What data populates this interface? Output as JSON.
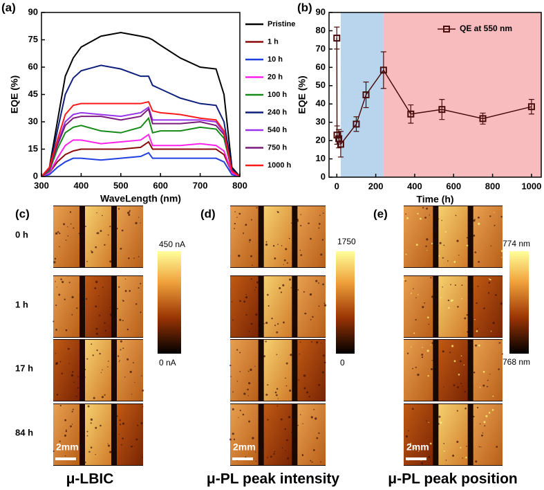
{
  "chart_data": [
    {
      "type": "line",
      "panel_label": "(a)",
      "x_label": "WaveLength (nm)",
      "y_label": "EQE (%)",
      "x": [
        300,
        320,
        340,
        360,
        380,
        400,
        450,
        500,
        550,
        570,
        580,
        600,
        650,
        700,
        740,
        760,
        780,
        800
      ],
      "series": [
        {
          "name": "Pristine",
          "color": "#000000",
          "values": [
            0,
            5,
            30,
            55,
            65,
            71,
            77,
            79,
            77,
            76,
            75,
            72,
            65,
            60,
            59,
            45,
            5,
            0
          ]
        },
        {
          "name": "1 h",
          "color": "#8b0a0a",
          "values": [
            0,
            2,
            8,
            12,
            14,
            15,
            15,
            15,
            16,
            19,
            15,
            15,
            15,
            15,
            15,
            12,
            2,
            0
          ]
        },
        {
          "name": "10 h",
          "color": "#1f3fe0",
          "values": [
            0,
            1,
            5,
            8,
            10,
            10,
            9,
            10,
            11,
            13,
            10,
            10,
            10,
            10,
            10,
            8,
            1,
            0
          ]
        },
        {
          "name": "20 h",
          "color": "#ff22ee",
          "values": [
            0,
            2,
            10,
            17,
            20,
            20,
            18,
            19,
            20,
            23,
            17,
            17,
            17,
            18,
            17,
            14,
            2,
            0
          ]
        },
        {
          "name": "100 h",
          "color": "#168a16",
          "values": [
            0,
            3,
            15,
            24,
            27,
            28,
            25,
            24,
            27,
            32,
            24,
            25,
            25,
            27,
            26,
            21,
            3,
            0
          ]
        },
        {
          "name": "240 h",
          "color": "#0d1f7a",
          "values": [
            0,
            4,
            25,
            45,
            54,
            58,
            61,
            59,
            55,
            55,
            50,
            48,
            43,
            40,
            39,
            30,
            4,
            0
          ]
        },
        {
          "name": "540 h",
          "color": "#9933ee",
          "values": [
            0,
            4,
            18,
            30,
            34,
            35,
            34,
            33,
            35,
            38,
            31,
            31,
            31,
            31,
            30,
            24,
            3,
            0
          ]
        },
        {
          "name": "750 h",
          "color": "#7a1a7a",
          "values": [
            0,
            4,
            17,
            28,
            32,
            33,
            33,
            31,
            33,
            37,
            29,
            29,
            29,
            30,
            28,
            23,
            3,
            0
          ]
        },
        {
          "name": "1000 h",
          "color": "#ff1a1a",
          "values": [
            0,
            5,
            20,
            34,
            39,
            40,
            40,
            40,
            40,
            41,
            36,
            35,
            34,
            32,
            31,
            25,
            3,
            0
          ]
        }
      ],
      "xlim": [
        300,
        800
      ],
      "xticks": [
        300,
        400,
        500,
        600,
        700,
        800
      ],
      "ylim": [
        0,
        90
      ],
      "yticks": [
        0,
        15,
        30,
        45,
        60,
        75,
        90
      ],
      "legend": "right-outside"
    },
    {
      "type": "line",
      "panel_label": "(b)",
      "x_label": "Time (h)",
      "y_label": "EQE (%)",
      "x": [
        0,
        1,
        10,
        20,
        100,
        150,
        240,
        380,
        540,
        750,
        1000
      ],
      "series": [
        {
          "name": "QE at 550 nm",
          "color": "#4a0d0d",
          "marker": "square",
          "values": [
            76,
            23,
            21,
            18,
            29,
            45,
            58.5,
            34.5,
            37,
            32,
            38.5
          ],
          "errors": [
            6,
            5,
            5,
            7,
            4,
            7,
            10,
            5,
            5.5,
            3,
            4
          ]
        }
      ],
      "shaded_regions": [
        {
          "from": 20,
          "to": 240,
          "color": "#b9d5ee"
        },
        {
          "from": 240,
          "to": 1050,
          "color": "#f8bcbf"
        }
      ],
      "xlim": [
        -40,
        1050
      ],
      "xticks": [
        0,
        200,
        400,
        600,
        800,
        1000
      ],
      "ylim": [
        0,
        90
      ],
      "yticks": [
        0,
        10,
        20,
        30,
        40,
        50,
        60,
        70,
        80,
        90
      ],
      "legend": "upper-right"
    }
  ],
  "maps": {
    "row_labels": [
      "0 h",
      "1 h",
      "17 h",
      "84 h"
    ],
    "scale_bar": "2mm",
    "panels": [
      {
        "panel_label": "(c)",
        "title": "μ-LBIC",
        "colorbar_max": "450 nA",
        "colorbar_min": "0 nA"
      },
      {
        "panel_label": "(d)",
        "title": "μ-PL peak intensity",
        "colorbar_max": "1750",
        "colorbar_min": "0"
      },
      {
        "panel_label": "(e)",
        "title": "μ-PL peak position",
        "colorbar_max": "774 nm",
        "colorbar_min": "768 nm"
      }
    ]
  }
}
